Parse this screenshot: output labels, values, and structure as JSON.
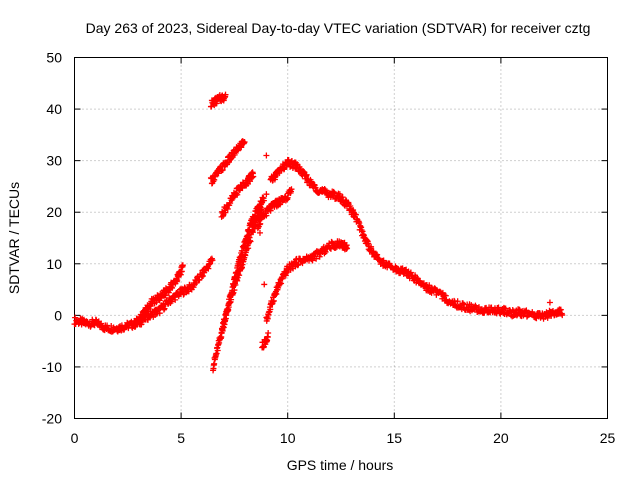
{
  "chart_data": {
    "type": "scatter",
    "title": "Day 263 of 2023, Sidereal Day-to-day VTEC variation (SDTVAR) for receiver cztg",
    "xlabel": "GPS time / hours",
    "ylabel": "SDTVAR / TECUs",
    "xlim": [
      0,
      25
    ],
    "ylim": [
      -20,
      50
    ],
    "xticks": [
      0,
      5,
      10,
      15,
      20,
      25
    ],
    "yticks": [
      -20,
      -10,
      0,
      10,
      20,
      30,
      40,
      50
    ],
    "grid": true,
    "marker": "+",
    "color": "#ff0000",
    "series": [
      {
        "name": "main",
        "points": [
          [
            0.0,
            -1.0
          ],
          [
            0.5,
            -1.5
          ],
          [
            1.0,
            -1.5
          ],
          [
            1.5,
            -2.5
          ],
          [
            2.0,
            -2.5
          ],
          [
            2.5,
            -2.0
          ],
          [
            3.0,
            -1.5
          ],
          [
            3.5,
            0.0
          ],
          [
            4.0,
            1.0
          ],
          [
            4.5,
            3.0
          ],
          [
            5.0,
            4.5
          ],
          [
            5.5,
            5.5
          ],
          [
            6.0,
            8.0
          ],
          [
            6.5,
            11.0
          ]
        ]
      },
      {
        "name": "arc-early",
        "points": [
          [
            2.8,
            -1.5
          ],
          [
            3.2,
            0.0
          ],
          [
            3.6,
            2.5
          ],
          [
            4.0,
            3.5
          ],
          [
            4.4,
            5.0
          ],
          [
            4.8,
            7.0
          ],
          [
            5.1,
            9.5
          ]
        ]
      },
      {
        "name": "arc-rise",
        "points": [
          [
            6.5,
            -10.0
          ],
          [
            6.8,
            -5.0
          ],
          [
            7.1,
            0.0
          ],
          [
            7.4,
            5.0
          ],
          [
            7.7,
            10.0
          ],
          [
            8.0,
            14.0
          ],
          [
            8.3,
            18.0
          ],
          [
            8.6,
            21.0
          ],
          [
            8.9,
            23.0
          ]
        ]
      },
      {
        "name": "arc-rise-2",
        "points": [
          [
            6.9,
            -3.0
          ],
          [
            7.3,
            3.0
          ],
          [
            7.7,
            8.0
          ],
          [
            8.1,
            13.0
          ],
          [
            8.5,
            18.0
          ],
          [
            8.8,
            21.0
          ]
        ]
      },
      {
        "name": "arc-mid",
        "points": [
          [
            6.9,
            19.5
          ],
          [
            7.3,
            22.0
          ],
          [
            7.7,
            24.5
          ],
          [
            8.1,
            26.0
          ],
          [
            8.4,
            27.5
          ]
        ]
      },
      {
        "name": "arc-mid-2",
        "points": [
          [
            8.6,
            17.5
          ],
          [
            9.0,
            20.0
          ],
          [
            9.4,
            21.5
          ],
          [
            9.8,
            22.5
          ],
          [
            10.2,
            24.0
          ]
        ]
      },
      {
        "name": "arc-upper",
        "points": [
          [
            6.4,
            26.0
          ],
          [
            6.8,
            28.0
          ],
          [
            7.2,
            30.0
          ],
          [
            7.6,
            32.0
          ],
          [
            8.0,
            34.0
          ]
        ]
      },
      {
        "name": "arc-top",
        "points": [
          [
            6.4,
            41.0
          ],
          [
            6.8,
            42.0
          ],
          [
            7.1,
            42.5
          ]
        ]
      },
      {
        "name": "arc-late-low",
        "points": [
          [
            8.8,
            -6.0
          ],
          [
            9.1,
            -4.0
          ]
        ]
      },
      {
        "name": "arc-noon",
        "points": [
          [
            9.0,
            -1.0
          ],
          [
            9.3,
            3.0
          ],
          [
            9.6,
            6.0
          ],
          [
            10.0,
            9.0
          ],
          [
            10.5,
            10.5
          ],
          [
            11.0,
            11.0
          ],
          [
            11.5,
            12.0
          ],
          [
            12.0,
            13.5
          ],
          [
            12.5,
            14.0
          ],
          [
            12.8,
            13.0
          ]
        ]
      },
      {
        "name": "main-peak",
        "points": [
          [
            9.2,
            26.0
          ],
          [
            9.6,
            28.0
          ],
          [
            10.0,
            29.5
          ],
          [
            10.4,
            29.0
          ],
          [
            10.8,
            27.0
          ],
          [
            11.2,
            25.0
          ],
          [
            11.6,
            24.0
          ],
          [
            12.0,
            23.5
          ],
          [
            12.4,
            23.0
          ],
          [
            12.8,
            21.5
          ],
          [
            13.2,
            19.0
          ],
          [
            13.6,
            15.0
          ],
          [
            14.0,
            12.0
          ],
          [
            14.5,
            10.0
          ],
          [
            15.0,
            9.0
          ],
          [
            15.5,
            8.5
          ],
          [
            16.0,
            7.0
          ],
          [
            16.5,
            5.5
          ],
          [
            17.0,
            4.5
          ],
          [
            17.5,
            3.0
          ],
          [
            18.0,
            2.0
          ],
          [
            18.5,
            1.5
          ],
          [
            19.0,
            1.0
          ],
          [
            19.5,
            1.0
          ],
          [
            20.0,
            1.0
          ],
          [
            20.5,
            0.5
          ],
          [
            21.0,
            0.5
          ],
          [
            21.5,
            0.0
          ],
          [
            22.0,
            0.0
          ],
          [
            22.5,
            0.5
          ],
          [
            22.9,
            0.5
          ]
        ]
      },
      {
        "name": "small-blips",
        "points": [
          [
            9.0,
            23.5
          ],
          [
            8.9,
            6.0
          ],
          [
            9.0,
            31.0
          ],
          [
            8.7,
            16.0
          ],
          [
            22.3,
            2.5
          ]
        ]
      }
    ]
  }
}
